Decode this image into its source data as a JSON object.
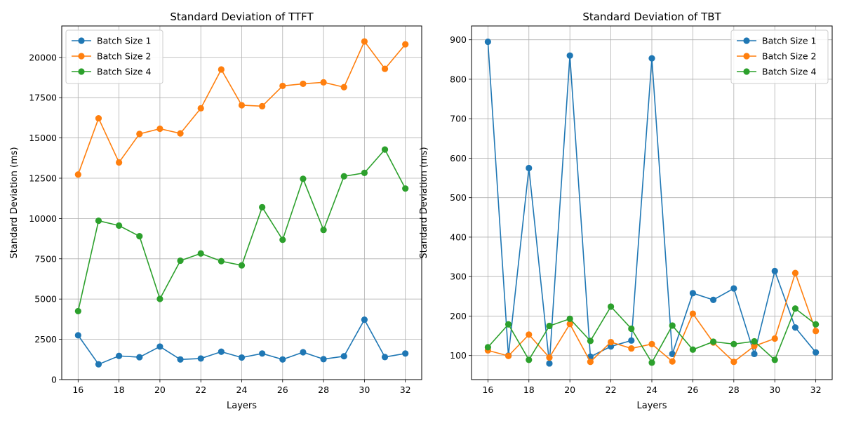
{
  "colors": {
    "series": [
      "#1f77b4",
      "#ff7f0e",
      "#2ca02c"
    ]
  },
  "chart_data": [
    {
      "type": "line",
      "title": "Standard Deviation of TTFT",
      "xlabel": "Layers",
      "ylabel": "Standard Deviation (ms)",
      "x": [
        16,
        17,
        18,
        19,
        20,
        21,
        22,
        23,
        24,
        25,
        26,
        27,
        28,
        29,
        30,
        31,
        32
      ],
      "xlim": [
        15.2,
        32.8
      ],
      "ylim": [
        0,
        21950
      ],
      "xticks": [
        16,
        18,
        20,
        22,
        24,
        26,
        28,
        30,
        32
      ],
      "yticks": [
        0,
        2500,
        5000,
        7500,
        10000,
        12500,
        15000,
        17500,
        20000
      ],
      "ytick_labels": [
        "0",
        "2500",
        "5000",
        "7500",
        "10000",
        "12500",
        "15000",
        "17500",
        "20000"
      ],
      "grid": true,
      "legend_position": "top-left",
      "series": [
        {
          "name": "Batch Size 1",
          "values": [
            2750,
            950,
            1470,
            1390,
            2050,
            1250,
            1310,
            1730,
            1370,
            1620,
            1250,
            1700,
            1270,
            1450,
            3720,
            1400,
            1620
          ]
        },
        {
          "name": "Batch Size 2",
          "values": [
            12730,
            16220,
            13480,
            15250,
            15570,
            15280,
            16840,
            19250,
            17030,
            16970,
            18230,
            18360,
            18450,
            18150,
            20990,
            19290,
            20810
          ]
        },
        {
          "name": "Batch Size 4",
          "values": [
            4250,
            9860,
            9560,
            8900,
            5010,
            7380,
            7830,
            7350,
            7090,
            10700,
            8680,
            12460,
            9290,
            12620,
            12830,
            14280,
            11860
          ]
        }
      ]
    },
    {
      "type": "line",
      "title": "Standard Deviation of TBT",
      "xlabel": "Layers",
      "ylabel": "Standard Deviation (ms)",
      "x": [
        16,
        17,
        18,
        19,
        20,
        21,
        22,
        23,
        24,
        25,
        26,
        27,
        28,
        29,
        30,
        31,
        32
      ],
      "xlim": [
        15.2,
        32.8
      ],
      "ylim": [
        39,
        935
      ],
      "xticks": [
        16,
        18,
        20,
        22,
        24,
        26,
        28,
        30,
        32
      ],
      "yticks": [
        100,
        200,
        300,
        400,
        500,
        600,
        700,
        800,
        900
      ],
      "ytick_labels": [
        "100",
        "200",
        "300",
        "400",
        "500",
        "600",
        "700",
        "800",
        "900"
      ],
      "grid": true,
      "legend_position": "top-right",
      "series": [
        {
          "name": "Batch Size 1",
          "values": [
            895,
            100,
            575,
            80,
            860,
            97,
            123,
            138,
            853,
            104,
            258,
            241,
            270,
            104,
            314,
            171,
            108
          ]
        },
        {
          "name": "Batch Size 2",
          "values": [
            113,
            99,
            153,
            95,
            180,
            84,
            134,
            118,
            129,
            85,
            206,
            133,
            84,
            124,
            143,
            309,
            162
          ]
        },
        {
          "name": "Batch Size 4",
          "values": [
            121,
            179,
            89,
            175,
            193,
            137,
            224,
            168,
            82,
            176,
            115,
            135,
            129,
            136,
            89,
            219,
            179
          ]
        }
      ]
    }
  ]
}
